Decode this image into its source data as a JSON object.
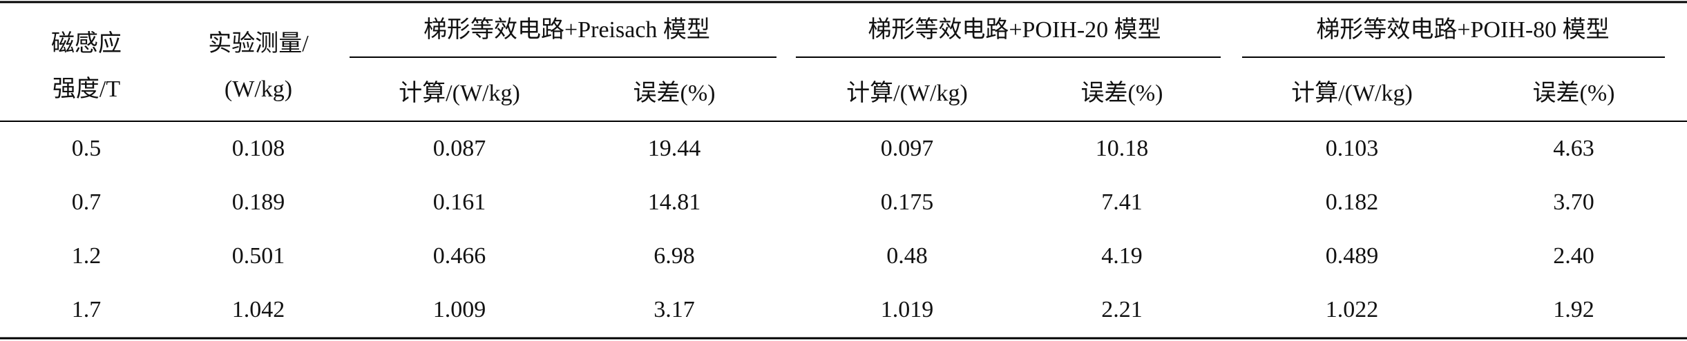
{
  "table": {
    "header": {
      "first": [
        "磁感应",
        "强度/T"
      ],
      "second": [
        "实验测量/",
        "(W/kg)"
      ],
      "groups": [
        {
          "title": "梯形等效电路+Preisach 模型",
          "sub": [
            "计算/(W/kg)",
            "误差(%)"
          ]
        },
        {
          "title": "梯形等效电路+POIH-20 模型",
          "sub": [
            "计算/(W/kg)",
            "误差(%)"
          ]
        },
        {
          "title": "梯形等效电路+POIH-80 模型",
          "sub": [
            "计算/(W/kg)",
            "误差(%)"
          ]
        }
      ]
    },
    "rows": [
      [
        "0.5",
        "0.108",
        "0.087",
        "19.44",
        "0.097",
        "10.18",
        "0.103",
        "4.63"
      ],
      [
        "0.7",
        "0.189",
        "0.161",
        "14.81",
        "0.175",
        "7.41",
        "0.182",
        "3.70"
      ],
      [
        "1.2",
        "0.501",
        "0.466",
        "6.98",
        "0.48",
        "4.19",
        "0.489",
        "2.40"
      ],
      [
        "1.7",
        "1.042",
        "1.009",
        "3.17",
        "1.019",
        "2.21",
        "1.022",
        "1.92"
      ]
    ]
  }
}
